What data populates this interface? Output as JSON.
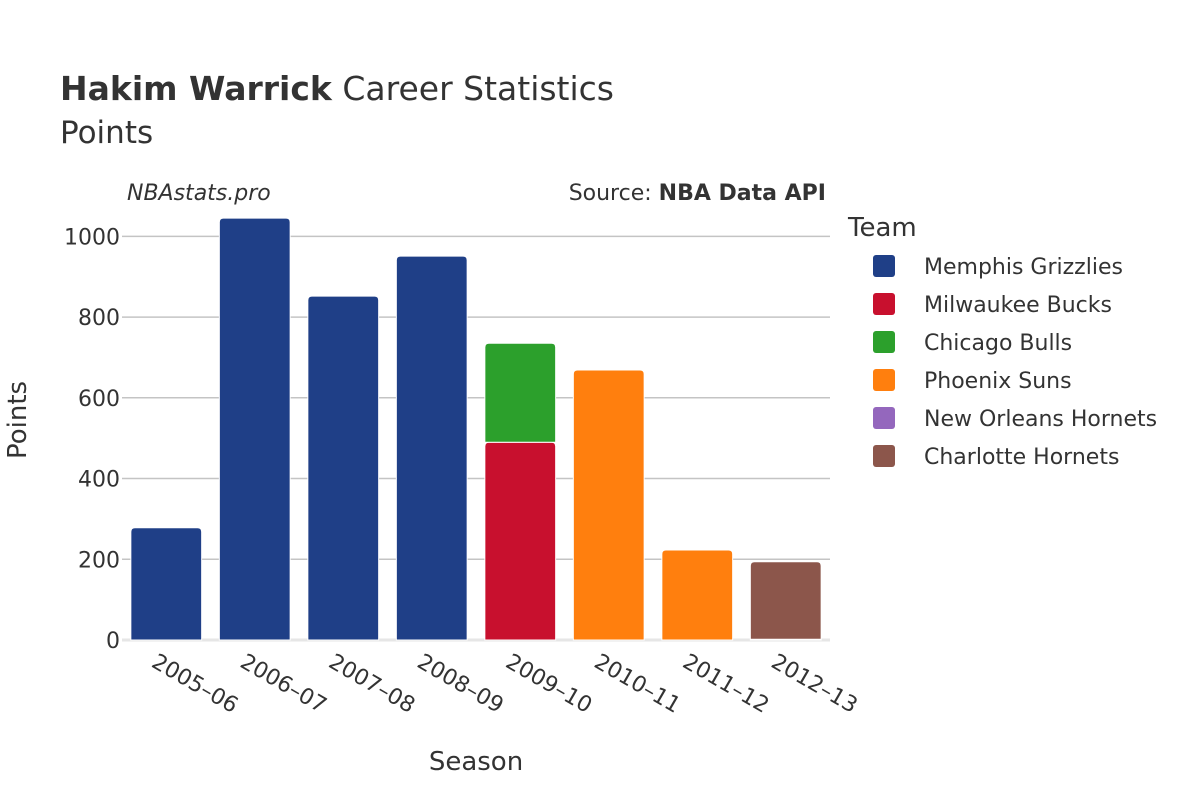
{
  "header": {
    "title_bold": "Hakim Warrick",
    "title_rest": " Career Statistics",
    "subtitle": "Points",
    "watermark": "NBAstats.pro",
    "source_prefix": "Source: ",
    "source_name": "NBA Data API"
  },
  "legend": {
    "title": "Team"
  },
  "chart_data": {
    "type": "bar",
    "stacked": true,
    "categories": [
      "2005–06",
      "2006–07",
      "2007–08",
      "2008–09",
      "2009–10",
      "2010–11",
      "2011–12",
      "2012–13"
    ],
    "xlabel": "Season",
    "ylabel": "Points",
    "ylim": [
      0,
      1090
    ],
    "yticks": [
      0,
      200,
      400,
      600,
      800,
      1000
    ],
    "grid": true,
    "legend_placement": "right",
    "series": [
      {
        "name": "Memphis Grizzlies",
        "color": "#1f3f87",
        "values": [
          278,
          1045,
          852,
          951,
          0,
          0,
          0,
          0
        ]
      },
      {
        "name": "Milwaukee Bucks",
        "color": "#c8102e",
        "values": [
          0,
          0,
          0,
          0,
          490,
          0,
          0,
          0
        ]
      },
      {
        "name": "Chicago Bulls",
        "color": "#2ca02c",
        "values": [
          0,
          0,
          0,
          0,
          245,
          0,
          0,
          0
        ]
      },
      {
        "name": "Phoenix Suns",
        "color": "#ff7f0e",
        "values": [
          0,
          0,
          0,
          0,
          0,
          669,
          223,
          0
        ]
      },
      {
        "name": "New Orleans Hornets",
        "color": "#9467bd",
        "values": [
          0,
          0,
          0,
          0,
          0,
          0,
          0,
          2
        ]
      },
      {
        "name": "Charlotte Hornets",
        "color": "#8c564b",
        "values": [
          0,
          0,
          0,
          0,
          0,
          0,
          0,
          192
        ]
      }
    ]
  }
}
